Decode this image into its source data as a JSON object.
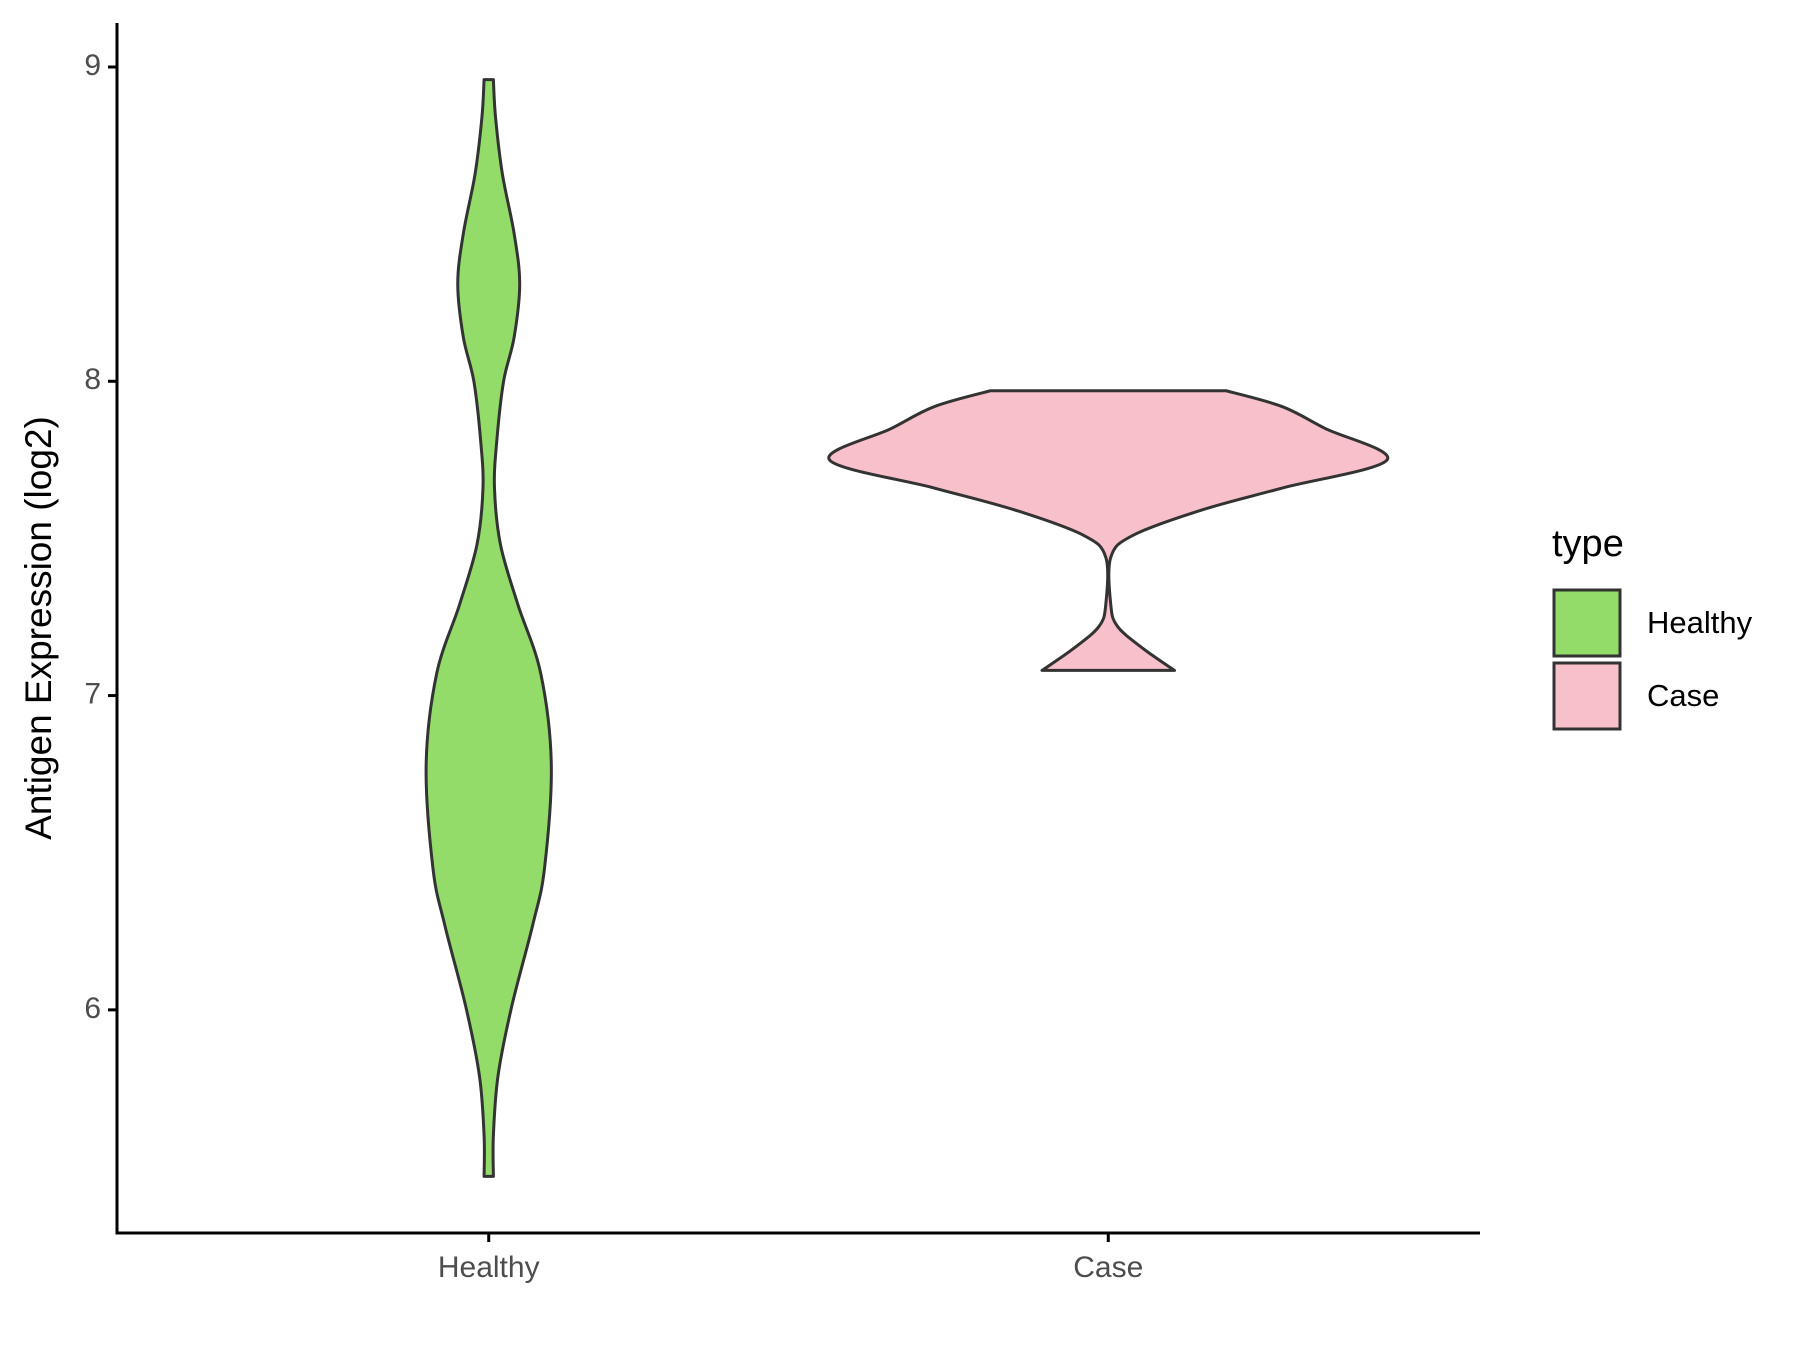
{
  "chart_data": {
    "type": "violin",
    "ylabel": "Antigen Expression (log2)",
    "categories": [
      "Healthy",
      "Case"
    ],
    "legend_title": "type",
    "legend_position": "right",
    "series": [
      {
        "name": "Healthy",
        "color": "#93dc6a",
        "y": [
          8.96,
          8.84,
          8.66,
          8.47,
          8.31,
          8.14,
          8.0,
          7.81,
          7.66,
          7.48,
          7.29,
          7.07,
          6.78,
          6.45,
          6.27,
          6.01,
          5.79,
          5.6,
          5.47
        ],
        "half_width": [
          0.0075,
          0.011,
          0.022,
          0.041,
          0.05,
          0.041,
          0.024,
          0.013,
          0.0093,
          0.019,
          0.047,
          0.084,
          0.101,
          0.09,
          0.071,
          0.037,
          0.015,
          0.0075,
          0.0075
        ]
      },
      {
        "name": "Case",
        "color": "#f8c0cb",
        "y": [
          7.97,
          7.92,
          7.85,
          7.75,
          7.66,
          7.59,
          7.51,
          7.44,
          7.29,
          7.22,
          7.15,
          7.08
        ],
        "half_width": [
          0.19,
          0.28,
          0.35,
          0.45,
          0.28,
          0.15,
          0.04,
          0.004,
          0.004,
          0.015,
          0.056,
          0.107
        ]
      }
    ],
    "ylim": [
      5.29,
      9.14
    ],
    "yticks": [
      6,
      7,
      8,
      9
    ],
    "grid": false
  }
}
